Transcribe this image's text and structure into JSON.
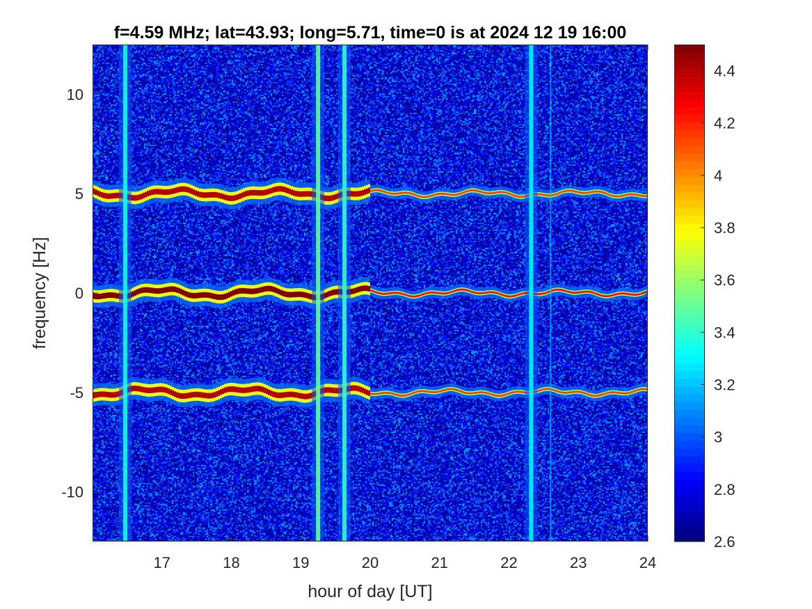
{
  "chart_data": {
    "type": "heatmap",
    "title": "f=4.59 MHz;  lat=43.93; long=5.71, time=0 is at 2024 12 19 16:00",
    "xlabel": "hour of day [UT]",
    "ylabel": "frequency [Hz]",
    "xlim": [
      16,
      24
    ],
    "ylim": [
      -12.5,
      12.5
    ],
    "xticks": [
      17,
      18,
      19,
      20,
      21,
      22,
      23,
      24
    ],
    "xtick_labels": [
      "17",
      "18",
      "19",
      "20",
      "21",
      "22",
      "23",
      "24"
    ],
    "yticks": [
      -10,
      -5,
      0,
      5,
      10
    ],
    "ytick_labels": [
      "-10",
      "-5",
      "0",
      "5",
      "10"
    ],
    "colorbar": {
      "limits": [
        2.6,
        4.5
      ],
      "ticks": [
        2.6,
        2.8,
        3.0,
        3.2,
        3.4,
        3.6,
        3.8,
        4.0,
        4.2,
        4.4
      ],
      "tick_labels": [
        "2.6",
        "2.8",
        "3",
        "3.2",
        "3.4",
        "3.6",
        "3.8",
        "4",
        "4.2",
        "4.4"
      ],
      "colormap": "jet"
    },
    "background_level": 2.75,
    "bands": [
      {
        "center_hz": 5.0,
        "peak_level": 4.4,
        "strong_until_hour": 20.0
      },
      {
        "center_hz": 0.0,
        "peak_level": 4.5,
        "strong_until_hour": 20.0
      },
      {
        "center_hz": -5.0,
        "peak_level": 4.4,
        "strong_until_hour": 20.0
      }
    ],
    "vertical_features": [
      {
        "hour": 16.47,
        "level": 3.35
      },
      {
        "hour": 22.32,
        "level": 3.3
      },
      {
        "hour": 22.6,
        "level": 3.2
      },
      {
        "hour": 19.25,
        "level": 3.5
      },
      {
        "hour": 19.63,
        "level": 3.4
      }
    ]
  }
}
